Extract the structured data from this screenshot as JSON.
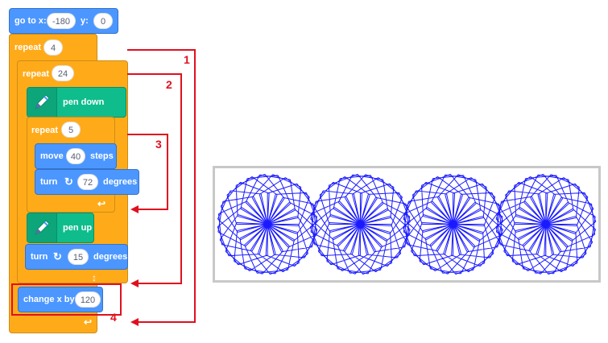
{
  "blocks": {
    "goto": {
      "label_x": "go to x:",
      "x": "-180",
      "label_y": "y:",
      "y": "0"
    },
    "repeat_outer": {
      "label": "repeat",
      "value": "4"
    },
    "repeat_mid": {
      "label": "repeat",
      "value": "24"
    },
    "pen_down": {
      "label": "pen down"
    },
    "repeat_inner": {
      "label": "repeat",
      "value": "5"
    },
    "move": {
      "label": "move",
      "value": "40",
      "suffix": "steps"
    },
    "turn_inner": {
      "label": "turn",
      "value": "72",
      "suffix": "degrees"
    },
    "pen_up": {
      "label": "pen up"
    },
    "turn_mid": {
      "label": "turn",
      "value": "15",
      "suffix": "degrees"
    },
    "change_x": {
      "label": "change x by",
      "value": "120"
    }
  },
  "annotations": [
    "1",
    "2",
    "3",
    "4"
  ],
  "colors": {
    "motion": "#4c97ff",
    "control": "#ffab19",
    "pen": "#0fbd8c",
    "annotation": "#e0101e",
    "drawing": "#1a1aff"
  },
  "icons": [
    "pen-icon",
    "turn-right-icon",
    "loop-arrow-icon"
  ]
}
